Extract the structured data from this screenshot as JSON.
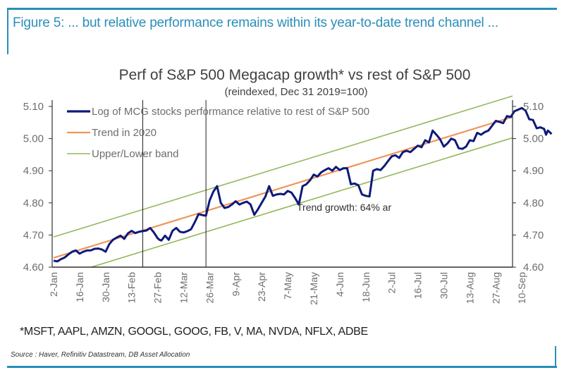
{
  "figure": {
    "title": "Figure 5: ... but relative performance remains within its year-to-date trend channel ...",
    "footnote": "*MSFT, AAPL, AMZN, GOOGL, GOOG, FB, V, MA, NVDA, NFLX, ADBE",
    "source": "Source : Haver, Refinitiv Datastream, DB Asset Allocation",
    "accent_color": "#2a8fb8"
  },
  "chart_data": {
    "type": "line",
    "title": "Perf of S&P 500 Megacap growth* vs rest of S&P 500",
    "subtitle": "(reindexed, Dec 31 2019=100)",
    "xlabel": "",
    "ylabel": "",
    "ylim": [
      4.6,
      5.15
    ],
    "yticks": [
      4.6,
      4.7,
      4.8,
      4.9,
      5.0,
      5.1
    ],
    "ytick_labels": [
      "4.60",
      "4.70",
      "4.80",
      "4.90",
      "5.00",
      "5.10"
    ],
    "secondary_yticks": [
      4.6,
      4.7,
      4.8,
      4.9,
      5.0,
      5.1
    ],
    "secondary_ytick_labels": [
      "4.60",
      "4.70",
      "4.80",
      "4.90",
      "5.00",
      "5.10"
    ],
    "x_unit": "days since 2-Jan-2020",
    "xlim": [
      0,
      258
    ],
    "xtick_days": [
      0,
      14,
      28,
      42,
      56,
      70,
      84,
      98,
      112,
      126,
      140,
      154,
      168,
      182,
      196,
      210,
      224,
      238,
      252
    ],
    "xtick_labels": [
      "2-Jan",
      "16-Jan",
      "30-Jan",
      "13-Feb",
      "27-Feb",
      "12-Mar",
      "26-Mar",
      "9-Apr",
      "23-Apr",
      "7-May",
      "21-May",
      "4-Jun",
      "18-Jun",
      "2-Jul",
      "16-Jul",
      "30-Jul",
      "13-Aug",
      "27-Aug",
      "10-Sep"
    ],
    "grid": false,
    "legend_position": "top-left",
    "vertical_markers_days": [
      48,
      82
    ],
    "annotations": [
      {
        "text": "Trend growth: 64% ar",
        "x_day": 136,
        "y": 4.785
      }
    ],
    "series": [
      {
        "name": "Log of MCG stocks performance relative to rest of S&P 500",
        "color": "#0d1a7a",
        "x": [
          0,
          2,
          4,
          6,
          8,
          10,
          12,
          14,
          16,
          18,
          20,
          22,
          24,
          26,
          28,
          30,
          32,
          34,
          36,
          38,
          40,
          42,
          44,
          46,
          48,
          50,
          52,
          54,
          56,
          57,
          58,
          60,
          62,
          64,
          66,
          68,
          70,
          72,
          74,
          76,
          78,
          80,
          82,
          84,
          86,
          88,
          90,
          92,
          94,
          96,
          98,
          100,
          102,
          104,
          106,
          108,
          110,
          112,
          114,
          116,
          118,
          120,
          122,
          124,
          126,
          128,
          130,
          132,
          134,
          136,
          138,
          140,
          142,
          144,
          146,
          148,
          150,
          152,
          154,
          156,
          158,
          160,
          162,
          164,
          166,
          168,
          170,
          172,
          174,
          176,
          178,
          180,
          182,
          184,
          186,
          188,
          190,
          192,
          194,
          196,
          198,
          200,
          202,
          204,
          206,
          208,
          210,
          212,
          214,
          216,
          218,
          220,
          222,
          224,
          226,
          228,
          230,
          232,
          234,
          236,
          238,
          240,
          242,
          244,
          246,
          248,
          250,
          252,
          254
        ],
        "values": [
          4.62,
          4.618,
          4.625,
          4.63,
          4.64,
          4.648,
          4.652,
          4.642,
          4.648,
          4.652,
          4.652,
          4.657,
          4.658,
          4.655,
          4.648,
          4.672,
          4.685,
          4.692,
          4.698,
          4.688,
          4.705,
          4.713,
          4.706,
          4.71,
          4.712,
          4.714,
          4.722,
          4.708,
          4.69,
          4.685,
          4.683,
          4.698,
          4.685,
          4.713,
          4.722,
          4.71,
          4.708,
          4.712,
          4.718,
          4.74,
          4.765,
          4.762,
          4.76,
          4.808,
          4.835,
          4.852,
          4.8,
          4.784,
          4.787,
          4.795,
          4.805,
          4.795,
          4.8,
          4.804,
          4.795,
          4.763,
          4.78,
          4.8,
          4.82,
          4.852,
          4.822,
          4.826,
          4.828,
          4.826,
          4.837,
          4.832,
          4.815,
          4.795,
          4.852,
          4.858,
          4.87,
          4.888,
          4.882,
          4.895,
          4.902,
          4.908,
          4.9,
          4.912,
          4.902,
          4.908,
          4.908,
          4.858,
          4.86,
          4.855,
          4.826,
          4.822,
          4.82,
          4.9,
          4.905,
          4.902,
          4.915,
          4.93,
          4.945,
          4.948,
          4.94,
          4.958,
          4.962,
          4.958,
          4.968,
          4.978,
          4.973,
          4.995,
          4.988,
          5.025,
          5.012,
          4.998,
          4.975,
          4.985,
          5.0,
          4.995,
          4.97,
          4.968,
          4.975,
          4.995,
          4.992,
          5.018,
          5.012,
          5.02,
          5.025,
          5.04,
          5.055,
          5.052,
          5.048,
          5.07,
          5.067,
          5.085,
          5.09,
          5.095,
          5.087
        ],
        "note": "approximate; series extends to ~12-Sep with final values near 5.03, 5.01, 5.02"
      },
      {
        "name": "Trend in 2020",
        "color": "#f0955a",
        "x": [
          0,
          258
        ],
        "values": [
          4.629,
          5.087
        ]
      },
      {
        "name": "Upper/Lower band",
        "color": "#92b85a",
        "upper": {
          "x": [
            0,
            258
          ],
          "values": [
            4.694,
            5.152
          ]
        },
        "lower": {
          "x": [
            0,
            258
          ],
          "values": [
            4.564,
            5.022
          ]
        }
      }
    ]
  }
}
